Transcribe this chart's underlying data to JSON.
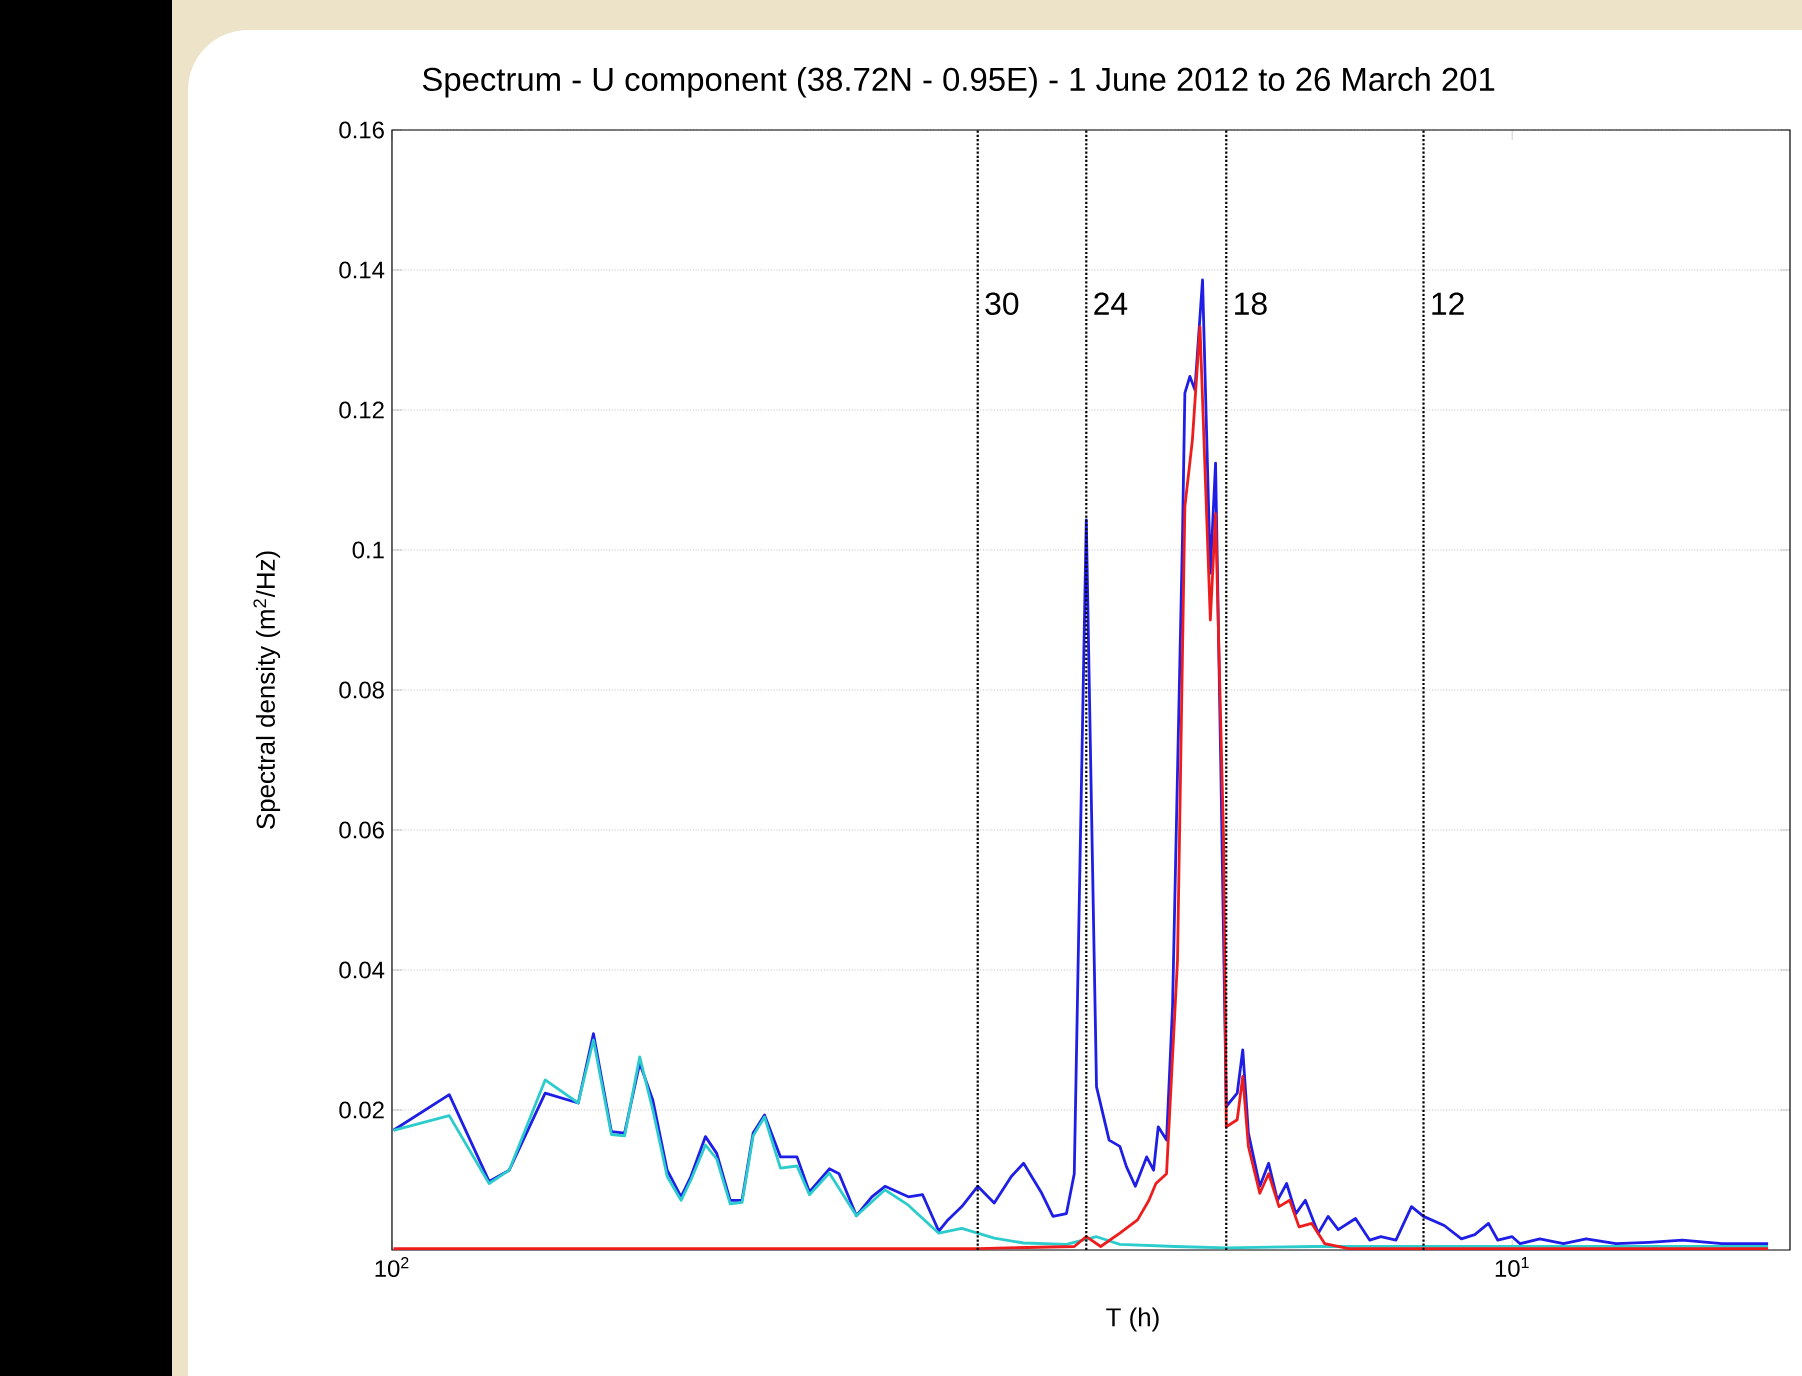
{
  "chart_data": {
    "type": "line",
    "title": "Spectrum - U component (38.72N - 0.95E) - 1 June 2012 to 26 March 201",
    "xlabel": "T (h)",
    "ylabel": "Spectral density (m$^{2}$/Hz)",
    "log": "x",
    "grid": "y",
    "xlim": [
      100,
      5.65
    ],
    "ylim": [
      0,
      0.16
    ],
    "xticks": [
      {
        "value": 100,
        "label": "10$^{2}$"
      },
      {
        "value": 10,
        "label": "10$^{1}$"
      }
    ],
    "yticks": [
      0.02,
      0.04,
      0.06,
      0.08,
      0.1,
      0.12,
      0.14,
      0.16
    ],
    "ref_lines": [
      {
        "axis": "x",
        "value": 30,
        "label": "30",
        "color": "#000000",
        "line_style": "dotted"
      },
      {
        "axis": "x",
        "value": 24,
        "label": "24",
        "color": "#000000",
        "line_style": "dotted"
      },
      {
        "axis": "x",
        "value": 18,
        "label": "18",
        "color": "#000000",
        "line_style": "dotted"
      },
      {
        "axis": "x",
        "value": 12,
        "label": "12",
        "color": "#000000",
        "line_style": "dotted"
      }
    ],
    "series": [
      {
        "color": "#1e1ee6",
        "x": [
          99.7,
          88.9,
          81.9,
          78.6,
          73.0,
          68.2,
          66.1,
          63.7,
          62.0,
          60.1,
          58.5,
          56.8,
          55.2,
          54.1,
          52.5,
          51.3,
          49.9,
          48.7,
          47.6,
          46.5,
          45.0,
          43.5,
          42.4,
          40.7,
          39.9,
          38.5,
          37.3,
          36.3,
          34.6,
          33.6,
          32.5,
          31.9,
          31.0,
          30.0,
          29.0,
          28.0,
          27.3,
          26.3,
          25.7,
          25.0,
          24.6,
          24.0,
          23.5,
          22.9,
          22.4,
          22.1,
          21.7,
          21.2,
          20.9,
          20.7,
          20.35,
          20.1,
          19.7,
          19.6,
          19.4,
          19.2,
          18.9,
          18.6,
          18.4,
          18.2,
          18.0,
          17.6,
          17.4,
          17.2,
          16.8,
          16.5,
          16.2,
          15.9,
          15.6,
          15.3,
          14.9,
          14.6,
          14.3,
          13.8,
          13.4,
          13.1,
          12.7,
          12.3,
          12.0,
          11.5,
          11.1,
          10.8,
          10.5,
          10.3,
          10.0,
          9.84,
          9.45,
          9.0,
          8.59,
          8.08,
          7.55,
          7.05,
          6.5,
          5.91
        ],
        "values": [
          0.0171,
          0.0222,
          0.0098,
          0.0114,
          0.0224,
          0.021,
          0.0309,
          0.0169,
          0.0167,
          0.0267,
          0.0214,
          0.0114,
          0.0076,
          0.0105,
          0.0162,
          0.0138,
          0.0071,
          0.0071,
          0.0167,
          0.0193,
          0.0133,
          0.0133,
          0.0083,
          0.0116,
          0.0109,
          0.0049,
          0.0076,
          0.0091,
          0.0076,
          0.0079,
          0.0027,
          0.0043,
          0.0062,
          0.0091,
          0.0067,
          0.0105,
          0.0124,
          0.0081,
          0.0048,
          0.0052,
          0.0109,
          0.1043,
          0.0233,
          0.0157,
          0.0148,
          0.0119,
          0.0091,
          0.0133,
          0.0114,
          0.0176,
          0.0157,
          0.0348,
          0.1014,
          0.1224,
          0.1248,
          0.1229,
          0.1386,
          0.0967,
          0.1124,
          0.0681,
          0.0205,
          0.0224,
          0.0286,
          0.0167,
          0.0091,
          0.0124,
          0.0071,
          0.0095,
          0.0052,
          0.0071,
          0.0024,
          0.0048,
          0.0029,
          0.0045,
          0.0014,
          0.0019,
          0.0014,
          0.0062,
          0.0048,
          0.0035,
          0.0016,
          0.0022,
          0.0038,
          0.0014,
          0.0019,
          0.0009,
          0.0016,
          0.0009,
          0.0016,
          0.0009,
          0.0011,
          0.0014,
          0.0009,
          0.0009
        ]
      },
      {
        "color": "#2ccccc",
        "x": [
          99.7,
          88.9,
          81.9,
          78.6,
          73.0,
          68.2,
          66.1,
          63.7,
          62.0,
          60.1,
          58.5,
          56.8,
          55.2,
          54.1,
          52.5,
          51.3,
          49.9,
          48.7,
          47.6,
          46.5,
          45.0,
          43.5,
          42.4,
          40.7,
          38.5,
          36.3,
          34.6,
          32.5,
          31.0,
          29.0,
          27.3,
          25.0,
          23.5,
          22.4,
          20.0,
          18.0,
          15.0,
          10.0,
          5.91
        ],
        "values": [
          0.0171,
          0.0192,
          0.0095,
          0.0114,
          0.0243,
          0.021,
          0.03,
          0.0165,
          0.0163,
          0.0276,
          0.02,
          0.0105,
          0.0071,
          0.01,
          0.015,
          0.013,
          0.0066,
          0.0068,
          0.0163,
          0.019,
          0.0117,
          0.012,
          0.0079,
          0.011,
          0.0049,
          0.0086,
          0.0064,
          0.0024,
          0.0031,
          0.0017,
          0.001,
          0.0008,
          0.0019,
          0.0008,
          0.0005,
          0.0003,
          0.0005,
          0.0005,
          0.0005
        ]
      },
      {
        "color": "#ee1c1c",
        "x": [
          99.7,
          30.0,
          24.6,
          24.0,
          23.3,
          22.4,
          21.6,
          21.1,
          20.8,
          20.35,
          19.9,
          19.6,
          19.3,
          19.0,
          18.6,
          18.4,
          18.1,
          18.0,
          17.6,
          17.4,
          17.2,
          16.8,
          16.5,
          16.15,
          15.8,
          15.5,
          15.1,
          14.7,
          14.0,
          5.91
        ],
        "values": [
          0.0002,
          0.0002,
          0.0005,
          0.0019,
          0.0005,
          0.0024,
          0.0043,
          0.0071,
          0.0095,
          0.0109,
          0.0414,
          0.1062,
          0.1157,
          0.1319,
          0.09,
          0.1052,
          0.0586,
          0.0176,
          0.0186,
          0.0248,
          0.0148,
          0.0081,
          0.0109,
          0.0062,
          0.0071,
          0.0033,
          0.0038,
          0.0009,
          0.0002,
          0.0002
        ]
      }
    ]
  }
}
